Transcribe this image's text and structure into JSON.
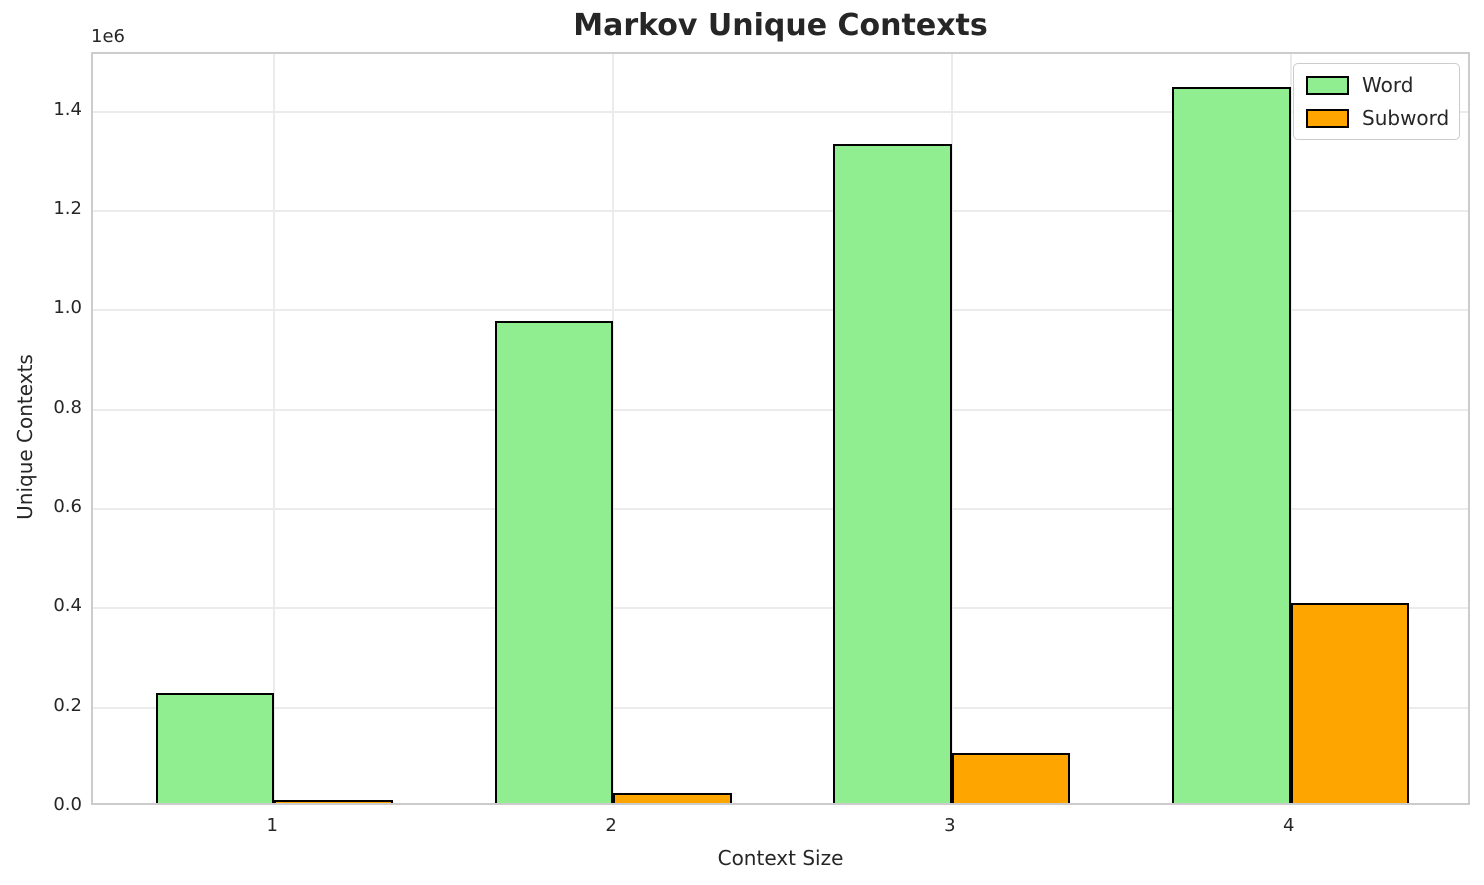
{
  "title": "Markov Unique Contexts",
  "axes": {
    "xlabel": "Context Size",
    "ylabel": "Unique Contexts",
    "offset_label": "1e6",
    "x_ticks": [
      "1",
      "2",
      "3",
      "4"
    ],
    "y_ticks": [
      {
        "label": "0.0",
        "value": 0
      },
      {
        "label": "0.2",
        "value": 200000
      },
      {
        "label": "0.4",
        "value": 400000
      },
      {
        "label": "0.6",
        "value": 600000
      },
      {
        "label": "0.8",
        "value": 800000
      },
      {
        "label": "1.0",
        "value": 1000000
      },
      {
        "label": "1.2",
        "value": 1200000
      },
      {
        "label": "1.4",
        "value": 1400000
      }
    ]
  },
  "legend": {
    "items": [
      {
        "label": "Word",
        "color": "#90EE90"
      },
      {
        "label": "Subword",
        "color": "#FFA500"
      }
    ]
  },
  "chart_data": {
    "type": "bar",
    "title": "Markov Unique Contexts",
    "xlabel": "Context Size",
    "ylabel": "Unique Contexts",
    "categories": [
      1,
      2,
      3,
      4
    ],
    "series": [
      {
        "name": "Word",
        "color": "#90EE90",
        "values": [
          222000,
          971000,
          1327000,
          1442000
        ]
      },
      {
        "name": "Subword",
        "color": "#FFA500",
        "values": [
          2000,
          20000,
          101000,
          403000
        ]
      }
    ],
    "ylim": [
      0,
      1516000
    ],
    "xlim": [
      0.465,
      4.535
    ],
    "bar_width_units": 0.35,
    "bar_edge_color": "#000000",
    "grid": true,
    "legend_position": "upper right",
    "y_offset_factor": "1e6"
  },
  "colors": {
    "text": "#262626",
    "grid": "#EBEBEB",
    "spine": "#CCCCCC",
    "background": "#FFFFFF",
    "word": "#90EE90",
    "subword": "#FFA500"
  }
}
